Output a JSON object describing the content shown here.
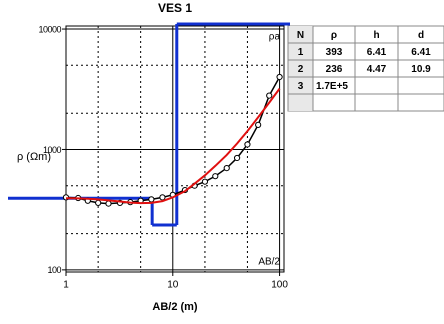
{
  "chart_data": {
    "type": "line",
    "title": "VES 1",
    "x_label": "AB/2 (m)",
    "y_label": "ρ (Ωm)",
    "curve_label": "ρa",
    "corner_label": "AB/2",
    "log_x": true,
    "log_y": true,
    "grid": true,
    "xlim": [
      1,
      110
    ],
    "ylim": [
      96,
      10600
    ],
    "xticks": [
      1,
      10,
      100
    ],
    "yticks": [
      100,
      1000,
      10000
    ],
    "xminorticks": [
      2,
      5,
      20,
      50
    ],
    "yminorticks": [
      200,
      500,
      2000,
      5000
    ],
    "x": [
      1,
      1.3,
      1.6,
      2,
      2.5,
      3.2,
      4,
      5,
      6.3,
      8,
      10,
      13,
      16,
      20,
      25,
      32,
      40,
      50,
      63,
      80,
      100
    ],
    "series": [
      {
        "color": "#000000",
        "markers": true,
        "values": [
          400,
          395,
          375,
          360,
          355,
          360,
          365,
          375,
          385,
          400,
          420,
          460,
          500,
          540,
          600,
          700,
          850,
          1100,
          1600,
          2800,
          4000
        ]
      },
      {
        "color": "#e01010",
        "markers": false,
        "values": [
          393,
          392,
          390,
          385,
          378,
          370,
          362,
          358,
          360,
          372,
          400,
          450,
          520,
          610,
          730,
          900,
          1120,
          1420,
          1850,
          2450,
          3200
        ]
      }
    ],
    "model_color": "#1030d0",
    "table_columns": [
      "N",
      "ρ",
      "h",
      "d"
    ],
    "model_layers": [
      {
        "n": 1,
        "rho": 393,
        "h": 6.41,
        "d": 6.41
      },
      {
        "n": 2,
        "rho": 236,
        "h": 4.47,
        "d": 10.9
      },
      {
        "n": 3,
        "rho": 170000,
        "rho_label": "1.7E+5",
        "h": null,
        "d": null
      }
    ]
  }
}
